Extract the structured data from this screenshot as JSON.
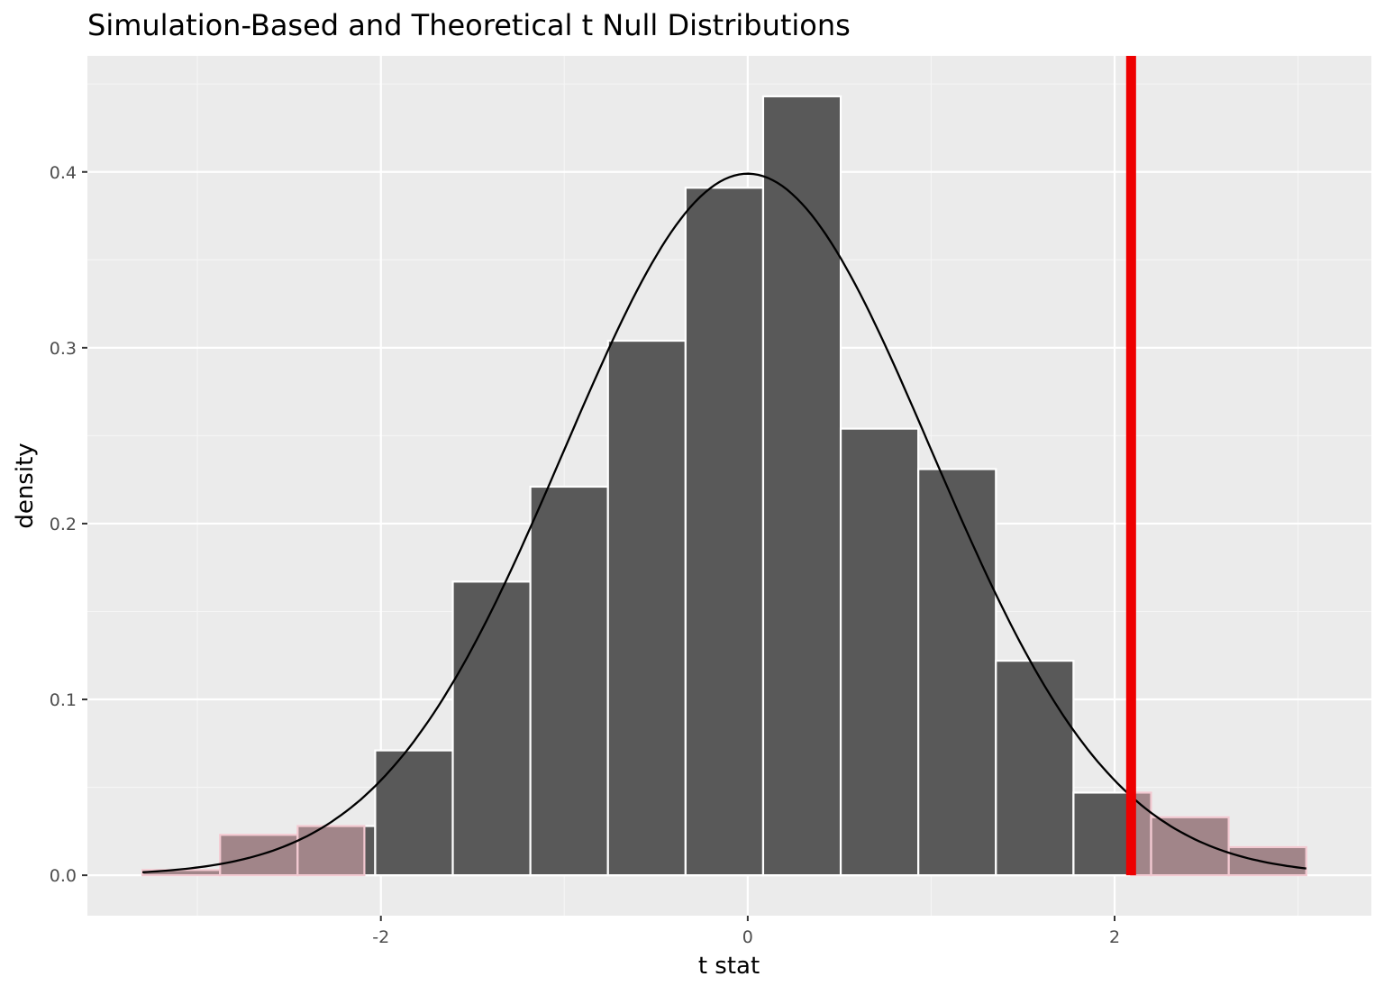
{
  "chart_data": {
    "type": "bar",
    "title": "Simulation-Based and Theoretical t Null Distributions",
    "xlabel": "t stat",
    "ylabel": "density",
    "xlim": [
      -3.6,
      3.4
    ],
    "ylim": [
      -0.023,
      0.466
    ],
    "x_ticks": [
      -2,
      0,
      2
    ],
    "x_tick_labels": [
      "-2",
      "0",
      "2"
    ],
    "y_ticks": [
      0.0,
      0.1,
      0.2,
      0.3,
      0.4
    ],
    "y_tick_labels": [
      "0.0",
      "0.1",
      "0.2",
      "0.3",
      "0.4"
    ],
    "grid": true,
    "bin_width": 0.423,
    "bins": [
      {
        "x0": -3.3,
        "x1": -2.877,
        "density": 0.003,
        "shaded": true
      },
      {
        "x0": -2.877,
        "x1": -2.454,
        "density": 0.023,
        "shaded": true
      },
      {
        "x0": -2.454,
        "x1": -2.031,
        "density": 0.028,
        "shaded": true
      },
      {
        "x0": -2.031,
        "x1": -1.608,
        "density": 0.071,
        "shaded": false
      },
      {
        "x0": -1.608,
        "x1": -1.185,
        "density": 0.167,
        "shaded": false
      },
      {
        "x0": -1.185,
        "x1": -0.762,
        "density": 0.221,
        "shaded": false
      },
      {
        "x0": -0.762,
        "x1": -0.339,
        "density": 0.304,
        "shaded": false
      },
      {
        "x0": -0.339,
        "x1": 0.084,
        "density": 0.391,
        "shaded": false
      },
      {
        "x0": 0.084,
        "x1": 0.507,
        "density": 0.443,
        "shaded": false
      },
      {
        "x0": 0.507,
        "x1": 0.93,
        "density": 0.254,
        "shaded": false
      },
      {
        "x0": 0.93,
        "x1": 1.353,
        "density": 0.231,
        "shaded": false
      },
      {
        "x0": 1.353,
        "x1": 1.776,
        "density": 0.122,
        "shaded": false
      },
      {
        "x0": 1.776,
        "x1": 2.199,
        "density": 0.047,
        "shaded": false
      },
      {
        "x0": 2.199,
        "x1": 2.622,
        "density": 0.033,
        "shaded": true
      },
      {
        "x0": 2.622,
        "x1": 3.045,
        "density": 0.016,
        "shaded": true
      }
    ],
    "shade_overlay": [
      {
        "x0": -3.3,
        "x1": -2.09
      },
      {
        "x0": 2.09,
        "x1": 3.045
      }
    ],
    "theoretical_curve": {
      "distribution": "t",
      "mean": 0,
      "peak_density": 0.399,
      "x_from": -3.3,
      "x_to": 3.045
    },
    "observed_stat": 2.09,
    "colors": {
      "panel_background": "#ebebeb",
      "grid_major": "#ffffff",
      "grid_minor": "#f5f5f5",
      "bar_fill": "#595959",
      "bar_outline": "#ffffff",
      "shade_fill": "#bc959b",
      "shade_outline": "#f2c9d1",
      "curve": "#000000",
      "observed_line": "#ee0000",
      "tick_text": "#4d4d4d",
      "tick_mark": "#333333"
    }
  }
}
